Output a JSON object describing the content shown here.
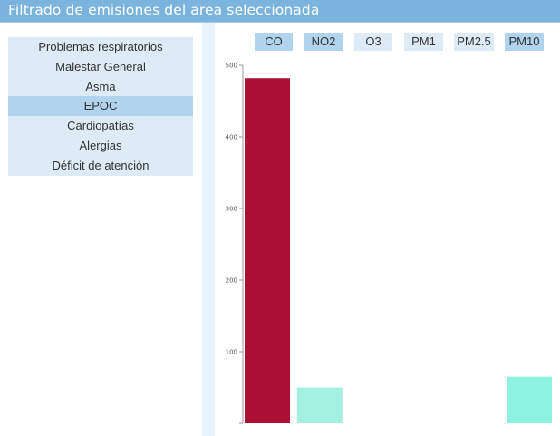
{
  "window": {
    "title": "Filtrado de emisiones del area seleccionada"
  },
  "sidebar": {
    "items": [
      {
        "label": "Problemas respiratorios",
        "active": false
      },
      {
        "label": "Malestar General",
        "active": false
      },
      {
        "label": "Asma",
        "active": false
      },
      {
        "label": "EPOC",
        "active": true
      },
      {
        "label": "Cardiopatías",
        "active": false
      },
      {
        "label": "Alergias",
        "active": false
      },
      {
        "label": "Déficit de atención",
        "active": false
      }
    ]
  },
  "tabs": [
    {
      "label": "CO",
      "active": true
    },
    {
      "label": "NO2",
      "active": true
    },
    {
      "label": "O3",
      "active": false
    },
    {
      "label": "PM1",
      "active": false
    },
    {
      "label": "PM2.5",
      "active": false
    },
    {
      "label": "PM10",
      "active": true
    }
  ],
  "colors": {
    "title_bar": "#7ab4de",
    "list_background": "#ddebf7",
    "selected": "#b1d4ee",
    "bar_co": "#ad1035",
    "bar_no2": "#a4f0e1",
    "bar_pm10": "#8ef2e1"
  },
  "chart_data": {
    "type": "bar",
    "categories": [
      "CO",
      "NO2",
      "O3",
      "PM1",
      "PM2.5",
      "PM10"
    ],
    "values": [
      482,
      50,
      0,
      0,
      0,
      65
    ],
    "bar_colors": [
      "#ad1035",
      "#a4f0e1",
      null,
      null,
      null,
      "#8ef2e1"
    ],
    "ylim": [
      0,
      500
    ],
    "yticks": [
      100,
      200,
      300,
      400,
      500
    ],
    "title": "",
    "xlabel": "",
    "ylabel": ""
  }
}
